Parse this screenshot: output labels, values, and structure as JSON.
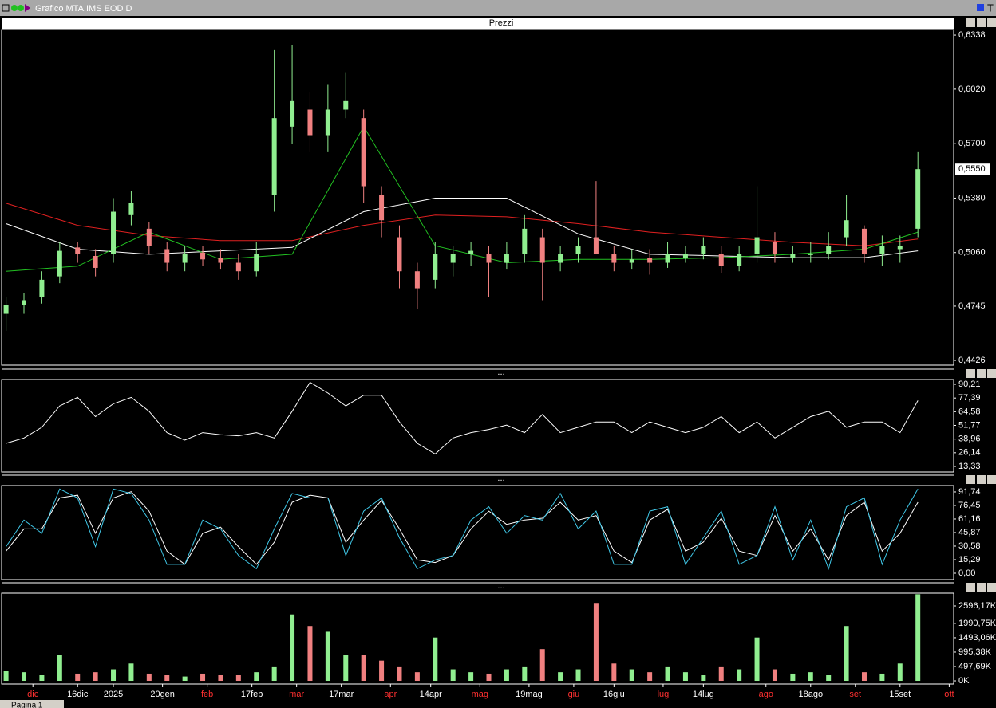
{
  "window": {
    "title": "Grafico MTA.IMS EOD D",
    "corner": "T",
    "tab": "Pagina 1"
  },
  "chart_data": [
    {
      "type": "candlestick",
      "title": "Prezzi",
      "up_color": "#90ee90",
      "down_color": "#f08080",
      "xlim": [
        -1,
        212
      ],
      "ylim": [
        0.4398,
        0.6371
      ],
      "yticks": [
        {
          "value": 0.6338,
          "label": "0,6338"
        },
        {
          "value": 0.602,
          "label": "0,6020"
        },
        {
          "value": 0.57,
          "label": "0,5700"
        },
        {
          "value": 0.538,
          "label": "0,5380"
        },
        {
          "value": 0.506,
          "label": "0,5060"
        },
        {
          "value": 0.4745,
          "label": "0,4745"
        },
        {
          "value": 0.4426,
          "label": "0,4426"
        }
      ],
      "last_price": {
        "value": 0.555,
        "label": "0,5550"
      },
      "x": [
        0,
        4,
        8,
        12,
        16,
        20,
        24,
        28,
        32,
        36,
        40,
        44,
        48,
        52,
        56,
        60,
        64,
        68,
        72,
        76,
        80,
        84,
        88,
        92,
        96,
        100,
        104,
        108,
        112,
        116,
        120,
        124,
        128,
        132,
        136,
        140,
        144,
        148,
        152,
        156,
        160,
        164,
        168,
        172,
        176,
        180,
        184,
        188,
        192,
        196,
        200,
        204
      ],
      "candles": [
        [
          0.47,
          0.48,
          0.46,
          0.475
        ],
        [
          0.475,
          0.482,
          0.47,
          0.478
        ],
        [
          0.48,
          0.495,
          0.476,
          0.49
        ],
        [
          0.492,
          0.512,
          0.488,
          0.507
        ],
        [
          0.509,
          0.512,
          0.5,
          0.505
        ],
        [
          0.504,
          0.508,
          0.492,
          0.497
        ],
        [
          0.505,
          0.538,
          0.5,
          0.53
        ],
        [
          0.528,
          0.542,
          0.522,
          0.535
        ],
        [
          0.52,
          0.524,
          0.505,
          0.51
        ],
        [
          0.508,
          0.512,
          0.495,
          0.5
        ],
        [
          0.5,
          0.51,
          0.495,
          0.505
        ],
        [
          0.506,
          0.51,
          0.498,
          0.502
        ],
        [
          0.503,
          0.508,
          0.496,
          0.5
        ],
        [
          0.5,
          0.505,
          0.49,
          0.495
        ],
        [
          0.495,
          0.512,
          0.492,
          0.505
        ],
        [
          0.54,
          0.625,
          0.53,
          0.585
        ],
        [
          0.58,
          0.628,
          0.57,
          0.595
        ],
        [
          0.59,
          0.6,
          0.565,
          0.575
        ],
        [
          0.575,
          0.605,
          0.565,
          0.59
        ],
        [
          0.59,
          0.612,
          0.585,
          0.595
        ],
        [
          0.585,
          0.59,
          0.535,
          0.545
        ],
        [
          0.54,
          0.545,
          0.515,
          0.525
        ],
        [
          0.515,
          0.522,
          0.485,
          0.495
        ],
        [
          0.495,
          0.5,
          0.473,
          0.485
        ],
        [
          0.49,
          0.512,
          0.485,
          0.505
        ],
        [
          0.5,
          0.51,
          0.492,
          0.505
        ],
        [
          0.505,
          0.512,
          0.498,
          0.507
        ],
        [
          0.505,
          0.51,
          0.48,
          0.5
        ],
        [
          0.5,
          0.512,
          0.496,
          0.505
        ],
        [
          0.505,
          0.528,
          0.5,
          0.52
        ],
        [
          0.515,
          0.52,
          0.478,
          0.5
        ],
        [
          0.5,
          0.51,
          0.495,
          0.505
        ],
        [
          0.505,
          0.515,
          0.5,
          0.51
        ],
        [
          0.515,
          0.548,
          0.505,
          0.505
        ],
        [
          0.505,
          0.51,
          0.495,
          0.5
        ],
        [
          0.5,
          0.508,
          0.496,
          0.502
        ],
        [
          0.503,
          0.508,
          0.493,
          0.5
        ],
        [
          0.5,
          0.512,
          0.497,
          0.505
        ],
        [
          0.503,
          0.51,
          0.5,
          0.505
        ],
        [
          0.505,
          0.515,
          0.502,
          0.51
        ],
        [
          0.505,
          0.51,
          0.494,
          0.498
        ],
        [
          0.498,
          0.51,
          0.495,
          0.505
        ],
        [
          0.505,
          0.545,
          0.5,
          0.515
        ],
        [
          0.512,
          0.518,
          0.5,
          0.505
        ],
        [
          0.503,
          0.51,
          0.5,
          0.505
        ],
        [
          0.505,
          0.512,
          0.5,
          0.505
        ],
        [
          0.505,
          0.518,
          0.502,
          0.51
        ],
        [
          0.515,
          0.54,
          0.51,
          0.525
        ],
        [
          0.52,
          0.522,
          0.5,
          0.505
        ],
        [
          0.505,
          0.516,
          0.498,
          0.51
        ],
        [
          0.508,
          0.516,
          0.5,
          0.51
        ],
        [
          0.52,
          0.565,
          0.515,
          0.555
        ]
      ],
      "overlays": [
        {
          "color": "#e02020",
          "x": [
            0,
            16,
            32,
            48,
            64,
            80,
            96,
            112,
            128,
            144,
            160,
            176,
            192,
            204
          ],
          "values": [
            0.535,
            0.522,
            0.516,
            0.513,
            0.513,
            0.522,
            0.528,
            0.527,
            0.523,
            0.518,
            0.515,
            0.512,
            0.51,
            0.514
          ]
        },
        {
          "color": "#ffffff",
          "x": [
            0,
            16,
            32,
            48,
            64,
            80,
            96,
            112,
            128,
            144,
            160,
            176,
            192,
            204
          ],
          "values": [
            0.523,
            0.508,
            0.505,
            0.507,
            0.509,
            0.53,
            0.538,
            0.538,
            0.517,
            0.505,
            0.504,
            0.503,
            0.503,
            0.507
          ]
        },
        {
          "color": "#22c022",
          "x": [
            0,
            16,
            32,
            48,
            64,
            80,
            96,
            112,
            128,
            144,
            160,
            176,
            192,
            204
          ],
          "values": [
            0.495,
            0.498,
            0.518,
            0.502,
            0.505,
            0.58,
            0.51,
            0.5,
            0.502,
            0.502,
            0.503,
            0.505,
            0.508,
            0.518
          ]
        }
      ]
    },
    {
      "type": "line",
      "title": "...",
      "xlim": [
        -1,
        212
      ],
      "ylim": [
        8.1,
        94.7
      ],
      "yticks": [
        {
          "value": 90.21,
          "label": "90,21"
        },
        {
          "value": 77.39,
          "label": "77,39"
        },
        {
          "value": 64.58,
          "label": "64,58"
        },
        {
          "value": 51.77,
          "label": "51,77"
        },
        {
          "value": 38.96,
          "label": "38,96"
        },
        {
          "value": 26.14,
          "label": "26,14"
        },
        {
          "value": 13.33,
          "label": "13,33"
        }
      ],
      "x": [
        0,
        4,
        8,
        12,
        16,
        20,
        24,
        28,
        32,
        36,
        40,
        44,
        48,
        52,
        56,
        60,
        64,
        68,
        72,
        76,
        80,
        84,
        88,
        92,
        96,
        100,
        104,
        108,
        112,
        116,
        120,
        124,
        128,
        132,
        136,
        140,
        144,
        148,
        152,
        156,
        160,
        164,
        168,
        172,
        176,
        180,
        184,
        188,
        192,
        196,
        200,
        204
      ],
      "series": [
        {
          "color": "#ffffff",
          "values": [
            35,
            40,
            50,
            70,
            78,
            60,
            72,
            78,
            65,
            45,
            38,
            45,
            43,
            42,
            45,
            40,
            65,
            92,
            82,
            70,
            80,
            80,
            55,
            35,
            25,
            40,
            45,
            48,
            52,
            45,
            62,
            45,
            50,
            55,
            55,
            45,
            55,
            50,
            45,
            50,
            60,
            45,
            55,
            40,
            50,
            60,
            65,
            50,
            55,
            55,
            45,
            75
          ]
        }
      ]
    },
    {
      "type": "line",
      "title": "...",
      "xlim": [
        -1,
        212
      ],
      "ylim": [
        -7.2,
        98.9
      ],
      "yticks": [
        {
          "value": 91.74,
          "label": "91,74"
        },
        {
          "value": 76.45,
          "label": "76,45"
        },
        {
          "value": 61.16,
          "label": "61,16"
        },
        {
          "value": 45.87,
          "label": "45,87"
        },
        {
          "value": 30.58,
          "label": "30,58"
        },
        {
          "value": 15.29,
          "label": "15,29"
        },
        {
          "value": 0,
          "label": "0,00"
        }
      ],
      "x": [
        0,
        4,
        8,
        12,
        16,
        20,
        24,
        28,
        32,
        36,
        40,
        44,
        48,
        52,
        56,
        60,
        64,
        68,
        72,
        76,
        80,
        84,
        88,
        92,
        96,
        100,
        104,
        108,
        112,
        116,
        120,
        124,
        128,
        132,
        136,
        140,
        144,
        148,
        152,
        156,
        160,
        164,
        168,
        172,
        176,
        180,
        184,
        188,
        192,
        196,
        200,
        204
      ],
      "series": [
        {
          "color": "#ffffff",
          "values": [
            25,
            50,
            50,
            85,
            88,
            45,
            85,
            92,
            70,
            25,
            10,
            45,
            52,
            30,
            10,
            35,
            80,
            88,
            85,
            35,
            60,
            82,
            50,
            15,
            12,
            20,
            50,
            70,
            55,
            60,
            62,
            80,
            60,
            65,
            25,
            12,
            60,
            72,
            25,
            35,
            62,
            25,
            20,
            65,
            25,
            50,
            15,
            65,
            80,
            25,
            45,
            80
          ]
        },
        {
          "color": "#40c8e8",
          "values": [
            30,
            60,
            45,
            95,
            85,
            30,
            95,
            90,
            60,
            10,
            10,
            60,
            50,
            20,
            5,
            50,
            90,
            85,
            85,
            20,
            70,
            85,
            40,
            5,
            15,
            20,
            60,
            75,
            45,
            65,
            60,
            90,
            50,
            70,
            10,
            10,
            70,
            75,
            10,
            40,
            70,
            10,
            20,
            75,
            15,
            60,
            5,
            75,
            85,
            10,
            60,
            95
          ]
        }
      ]
    },
    {
      "type": "bar",
      "title": "...",
      "xlim": [
        -1,
        212
      ],
      "ylim": [
        -110,
        3038
      ],
      "yticks": [
        {
          "value": 2596.17,
          "label": "2596,17K"
        },
        {
          "value": 1990.75,
          "label": "1990,75K"
        },
        {
          "value": 1493.06,
          "label": "1493,06K"
        },
        {
          "value": 995.38,
          "label": "995,38K"
        },
        {
          "value": 497.69,
          "label": "497,69K"
        },
        {
          "value": 0,
          "label": "0K"
        }
      ],
      "x": [
        0,
        4,
        8,
        12,
        16,
        20,
        24,
        28,
        32,
        36,
        40,
        44,
        48,
        52,
        56,
        60,
        64,
        68,
        72,
        76,
        80,
        84,
        88,
        92,
        96,
        100,
        104,
        108,
        112,
        116,
        120,
        124,
        128,
        132,
        136,
        140,
        144,
        148,
        152,
        156,
        160,
        164,
        168,
        172,
        176,
        180,
        184,
        188,
        192,
        196,
        200,
        204
      ],
      "values": [
        350,
        300,
        200,
        900,
        250,
        300,
        400,
        600,
        250,
        200,
        150,
        250,
        200,
        200,
        300,
        500,
        2300,
        1900,
        1700,
        900,
        900,
        700,
        500,
        300,
        1500,
        400,
        300,
        250,
        400,
        500,
        1100,
        300,
        400,
        2700,
        600,
        400,
        300,
        500,
        300,
        200,
        500,
        400,
        1500,
        400,
        250,
        300,
        200,
        1900,
        300,
        250,
        600,
        3000
      ],
      "xticks": [
        {
          "value": 6,
          "label": "dic"
        },
        {
          "value": 16,
          "label": "16dic"
        },
        {
          "value": 24,
          "label": "2025"
        },
        {
          "value": 35,
          "label": "20gen"
        },
        {
          "value": 45,
          "label": "feb"
        },
        {
          "value": 55,
          "label": "17feb"
        },
        {
          "value": 65,
          "label": "mar"
        },
        {
          "value": 75,
          "label": "17mar"
        },
        {
          "value": 86,
          "label": "apr"
        },
        {
          "value": 95,
          "label": "14apr"
        },
        {
          "value": 106,
          "label": "mag"
        },
        {
          "value": 117,
          "label": "19mag"
        },
        {
          "value": 127,
          "label": "giu"
        },
        {
          "value": 136,
          "label": "16giu"
        },
        {
          "value": 147,
          "label": "lug"
        },
        {
          "value": 156,
          "label": "14lug"
        },
        {
          "value": 170,
          "label": "ago"
        },
        {
          "value": 180,
          "label": "18ago"
        },
        {
          "value": 190,
          "label": "set"
        },
        {
          "value": 200,
          "label": "15set"
        },
        {
          "value": 211,
          "label": "ott"
        }
      ],
      "xtick_colors": [
        "#ff3030",
        "#ffffff",
        "#ffffff",
        "#ffffff",
        "#ff3030",
        "#ffffff",
        "#ff3030",
        "#ffffff",
        "#ff3030",
        "#ffffff",
        "#ff3030",
        "#ffffff",
        "#ff3030",
        "#ffffff",
        "#ff3030",
        "#ffffff",
        "#ff3030",
        "#ffffff",
        "#ff3030",
        "#ffffff",
        "#ff3030"
      ]
    }
  ]
}
